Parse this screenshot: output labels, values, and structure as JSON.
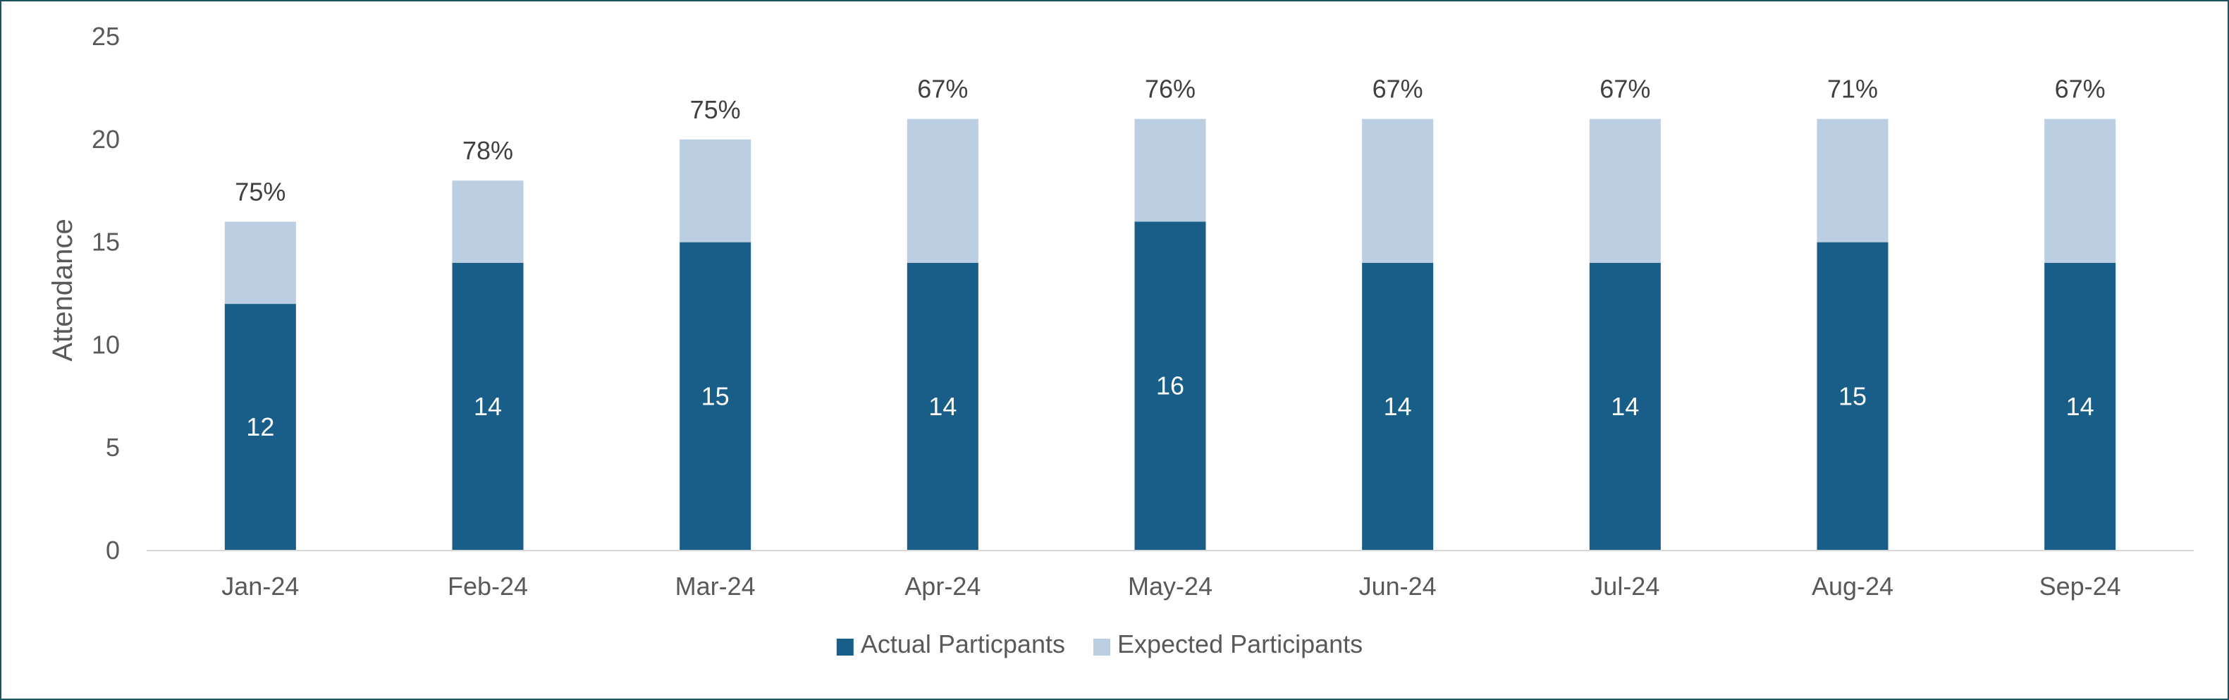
{
  "chart_data": {
    "type": "bar",
    "stacked": true,
    "ylabel": "Attendance",
    "ylim": [
      0,
      25
    ],
    "yticks": [
      0,
      5,
      10,
      15,
      20,
      25
    ],
    "gridlines": false,
    "legend_position": "bottom",
    "categories": [
      "Jan-24",
      "Feb-24",
      "Mar-24",
      "Apr-24",
      "May-24",
      "Jun-24",
      "Jul-24",
      "Aug-24",
      "Sep-24"
    ],
    "series": [
      {
        "name": "Actual Particpants",
        "color": "#185e88",
        "values": [
          12,
          14,
          15,
          14,
          16,
          14,
          14,
          15,
          14
        ]
      },
      {
        "name": "Expected Participants",
        "color": "#bccee2",
        "values": [
          4,
          4,
          5,
          7,
          5,
          7,
          7,
          6,
          7
        ]
      }
    ],
    "data_labels": {
      "actual": [
        "12",
        "14",
        "15",
        "14",
        "16",
        "14",
        "14",
        "15",
        "14"
      ],
      "top_percent": [
        "75%",
        "78%",
        "75%",
        "67%",
        "76%",
        "67%",
        "67%",
        "71%",
        "67%"
      ]
    }
  }
}
